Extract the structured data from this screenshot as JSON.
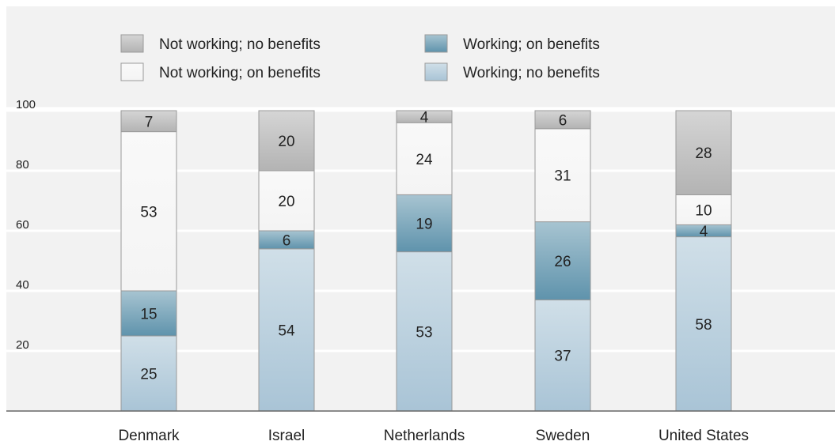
{
  "chart_data": {
    "type": "bar",
    "stacked": true,
    "categories": [
      "Denmark",
      "Israel",
      "Netherlands",
      "Sweden",
      "United States"
    ],
    "series": [
      {
        "name": "Working; no benefits",
        "values": [
          25,
          54,
          53,
          37,
          58
        ],
        "color": "#a9c4d6"
      },
      {
        "name": "Working; on benefits",
        "values": [
          15,
          6,
          19,
          26,
          4
        ],
        "color": "#5f93ac"
      },
      {
        "name": "Not working; on benefits",
        "values": [
          53,
          20,
          24,
          31,
          10
        ],
        "color": "#f4f4f4"
      },
      {
        "name": "Not working; no benefits",
        "values": [
          7,
          20,
          4,
          6,
          28
        ],
        "color": "#b3b3b3"
      }
    ],
    "yticks": [
      20,
      40,
      60,
      80,
      100
    ],
    "ylim": [
      0,
      100
    ],
    "grid": true,
    "legend_position": "top",
    "legend_order": [
      "Not working; no benefits",
      "Working; on benefits",
      "Not working; on benefits",
      "Working; no benefits"
    ],
    "background_color": "#f2f2f2"
  }
}
